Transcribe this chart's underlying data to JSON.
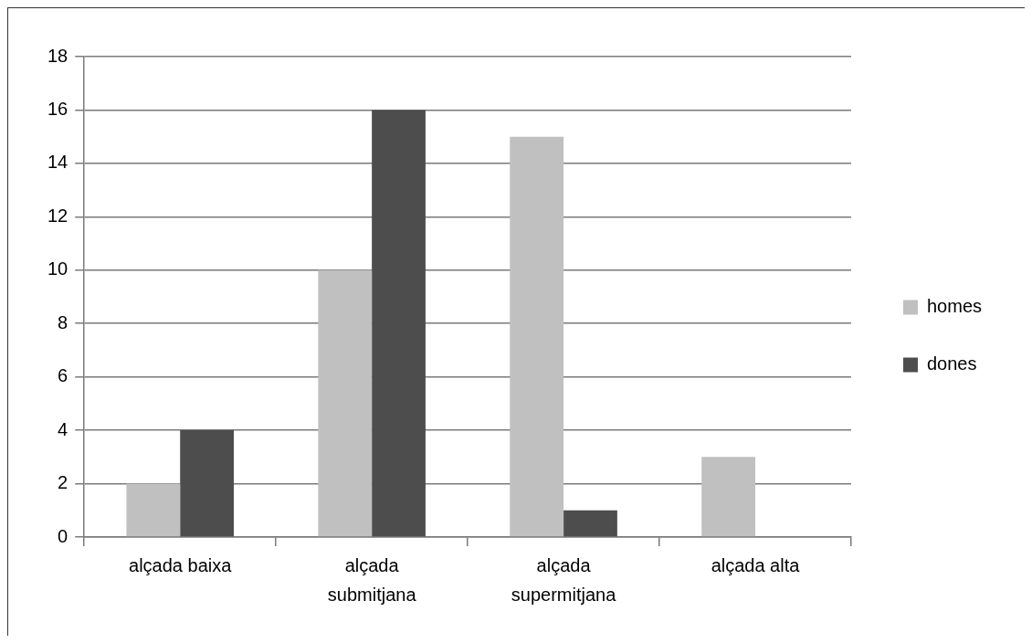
{
  "chart_data": {
    "type": "bar",
    "categories": [
      "alçada baixa",
      "alçada submitjana",
      "alçada supermitjana",
      "alçada alta"
    ],
    "series": [
      {
        "name": "homes",
        "color": "#c0c0c0",
        "values": [
          2,
          10,
          15,
          3
        ]
      },
      {
        "name": "dones",
        "color": "#4d4d4d",
        "values": [
          4,
          16,
          1,
          0
        ]
      }
    ],
    "ylim": [
      0,
      18
    ],
    "yticks": [
      0,
      2,
      4,
      6,
      8,
      10,
      12,
      14,
      16,
      18
    ],
    "grid": "y",
    "legend": "right"
  }
}
